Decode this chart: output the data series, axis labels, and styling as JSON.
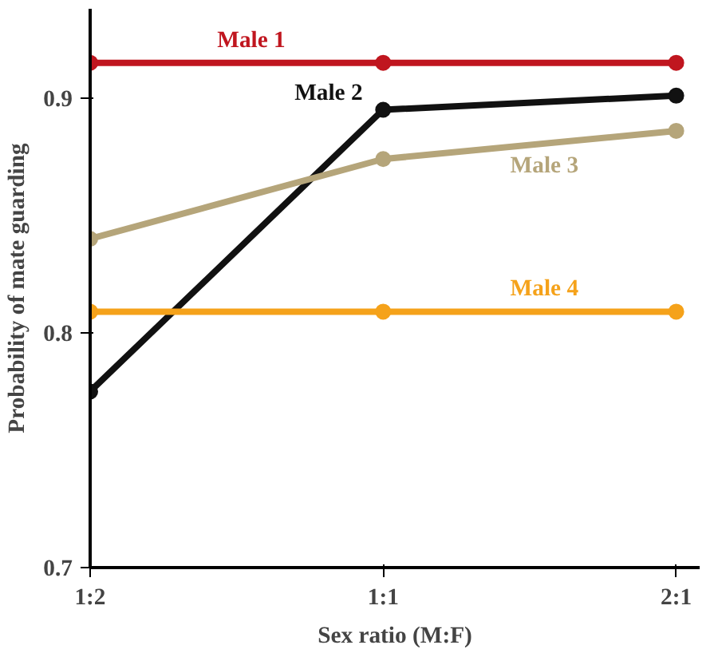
{
  "chart_data": {
    "type": "line",
    "xlabel": "Sex ratio (M:F)",
    "ylabel": "Probability of mate guarding",
    "categories": [
      "1:2",
      "1:1",
      "2:1"
    ],
    "ylim": [
      0.7,
      0.938
    ],
    "yticks": [
      0.7,
      0.8,
      0.9
    ],
    "grid": false,
    "legend": false,
    "marker": "circle",
    "line_style": "solid",
    "series": [
      {
        "name": "Male 1",
        "color": "#c0161f",
        "values": [
          0.915,
          0.915,
          0.915
        ]
      },
      {
        "name": "Male 2",
        "color": "#111111",
        "values": [
          0.775,
          0.895,
          0.901
        ]
      },
      {
        "name": "Male 3",
        "color": "#b5a57a",
        "values": [
          0.84,
          0.874,
          0.886
        ]
      },
      {
        "name": "Male 4",
        "color": "#f5a21a",
        "values": [
          0.809,
          0.809,
          0.809
        ]
      }
    ]
  }
}
